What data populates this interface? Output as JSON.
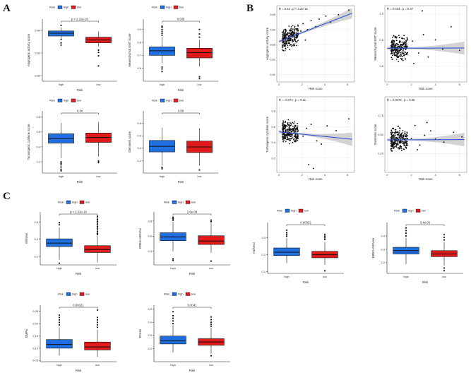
{
  "panels": [
    {
      "letter": "A"
    },
    {
      "letter": "B"
    },
    {
      "letter": "C"
    }
  ],
  "colors": {
    "high": "#1f6fe0",
    "low": "#e11b1b",
    "fit_line": "#3355dd",
    "ci_band": "#c8c8c8",
    "points": "#111111"
  },
  "chart_data": [
    {
      "type": "box",
      "panel": "A",
      "legend_title": "Risk",
      "legend": [
        "high",
        "low"
      ],
      "title": "",
      "xlabel": "Risk",
      "ylabel": "Angiogenic activity score",
      "stat": "p < 2.22e-16",
      "categories": [
        "high",
        "low"
      ],
      "ylim": [
        0.795,
        0.85
      ],
      "yticks": [
        0.8,
        0.82,
        0.84
      ],
      "ytick_labels": [
        "0.80",
        "0.82",
        "0.84"
      ],
      "boxes": [
        {
          "group": "high",
          "min": 0.832,
          "q1": 0.835,
          "median": 0.8375,
          "q3": 0.8395,
          "max": 0.8425,
          "outliers": [
            0.8445,
            0.832,
            0.829,
            0.827
          ]
        },
        {
          "group": "low",
          "min": 0.826,
          "q1": 0.829,
          "median": 0.8315,
          "q3": 0.834,
          "max": 0.839,
          "outliers": [
            0.8225,
            0.8205,
            0.8175,
            0.8085
          ]
        }
      ]
    },
    {
      "type": "box",
      "panel": "A",
      "legend_title": "Risk",
      "legend": [
        "high",
        "low"
      ],
      "title": "",
      "xlabel": "Risk",
      "ylabel": "Mesenchymal EMT score",
      "stat": "0.035",
      "categories": [
        "high",
        "low"
      ],
      "ylim": [
        0.5,
        0.98
      ],
      "yticks": [
        0.6,
        0.7,
        0.8,
        0.9
      ],
      "ytick_labels": [
        "0.6",
        "0.7",
        "0.8",
        "0.9"
      ],
      "boxes": [
        {
          "group": "high",
          "min": 0.64,
          "q1": 0.7,
          "median": 0.735,
          "q3": 0.765,
          "max": 0.84,
          "outliers": [
            0.855,
            0.87,
            0.885,
            0.9,
            0.915,
            0.925,
            0.61,
            0.595,
            0.575
          ]
        },
        {
          "group": "low",
          "min": 0.615,
          "q1": 0.68,
          "median": 0.72,
          "q3": 0.755,
          "max": 0.82,
          "outliers": [
            0.84,
            0.865,
            0.9,
            0.52,
            0.535
          ]
        }
      ]
    },
    {
      "type": "box",
      "panel": "A",
      "legend_title": "Risk",
      "legend": [
        "high",
        "low"
      ],
      "title": "",
      "xlabel": "Risk",
      "ylabel": "Tumorigenic cytokine score",
      "stat": "0.34",
      "categories": [
        "high",
        "low"
      ],
      "ylim": [
        0.05,
        0.88
      ],
      "yticks": [
        0.2,
        0.4,
        0.6,
        0.8
      ],
      "ytick_labels": [
        "0.2",
        "0.4",
        "0.6",
        "0.8"
      ],
      "boxes": [
        {
          "group": "high",
          "min": 0.25,
          "q1": 0.45,
          "median": 0.51,
          "q3": 0.575,
          "max": 0.72,
          "outliers": [
            0.2,
            0.18,
            0.16,
            0.13,
            0.1,
            0.08
          ]
        },
        {
          "group": "low",
          "min": 0.27,
          "q1": 0.46,
          "median": 0.525,
          "q3": 0.585,
          "max": 0.73,
          "outliers": [
            0.21,
            0.19
          ]
        }
      ]
    },
    {
      "type": "box",
      "panel": "A",
      "legend_title": "Risk",
      "legend": [
        "high",
        "low"
      ],
      "title": "",
      "xlabel": "Risk",
      "ylabel": "Stemness score",
      "stat": "0.89",
      "categories": [
        "high",
        "low"
      ],
      "ylim": [
        0.0,
        1.0
      ],
      "yticks": [
        0.2,
        0.4,
        0.6,
        0.8
      ],
      "ytick_labels": [
        "0.2",
        "0.4",
        "0.6",
        "0.8"
      ],
      "boxes": [
        {
          "group": "high",
          "min": 0.12,
          "q1": 0.34,
          "median": 0.43,
          "q3": 0.525,
          "max": 0.73,
          "outliers": [
            0.09,
            0.07
          ]
        },
        {
          "group": "low",
          "min": 0.12,
          "q1": 0.33,
          "median": 0.42,
          "q3": 0.515,
          "max": 0.72,
          "outliers": [
            0.05
          ]
        }
      ]
    },
    {
      "type": "scatter",
      "panel": "B",
      "xlabel": "Risk score",
      "ylabel": "Angiogenic activity score",
      "annotation": "R = 0.44 , p < 2.2e-16",
      "xlim": [
        -0.2,
        6.6
      ],
      "ylim": [
        0.805,
        0.856
      ],
      "xticks": [
        0,
        2,
        4,
        6
      ],
      "xtick_labels": [
        "0",
        "2",
        "4",
        "6"
      ],
      "yticks": [
        0.81,
        0.82,
        0.83,
        0.84,
        0.85
      ],
      "ytick_labels": [
        "0.81",
        "0.82",
        "0.83",
        "0.84",
        "0.85"
      ],
      "fit": {
        "x": [
          0,
          6.4
        ],
        "y": [
          0.832,
          0.851
        ]
      },
      "ci_halfwidth": [
        0.0006,
        0.0035
      ],
      "cluster": {
        "xmin": 0.3,
        "xmax": 1.7,
        "ymid": 0.835,
        "yspread": 0.006
      },
      "sparse": {
        "x": [
          2.1,
          2.5,
          2.8,
          3.2,
          3.5,
          4.1,
          4.5,
          5.2,
          6.1,
          1.9,
          2.3
        ],
        "y": [
          0.844,
          0.84,
          0.846,
          0.842,
          0.847,
          0.849,
          0.845,
          0.85,
          0.853,
          0.839,
          0.833
        ]
      }
    },
    {
      "type": "scatter",
      "panel": "B",
      "xlabel": "Risk score",
      "ylabel": "Mesenchymal EMT score",
      "annotation": "R = 0.033 , p = 0.47",
      "xlim": [
        -0.2,
        6.6
      ],
      "ylim": [
        0.48,
        1.06
      ],
      "xticks": [
        0,
        2,
        4,
        6
      ],
      "xtick_labels": [
        "0",
        "2",
        "4",
        "6"
      ],
      "yticks": [
        0.6,
        0.8,
        1.0
      ],
      "ytick_labels": [
        "0.6",
        "0.8",
        "1.0"
      ],
      "fit": {
        "x": [
          0,
          6.4
        ],
        "y": [
          0.736,
          0.738
        ]
      },
      "ci_halfwidth": [
        0.006,
        0.05
      ],
      "cluster": {
        "xmin": 0.3,
        "xmax": 1.7,
        "ymid": 0.74,
        "yspread": 0.075
      },
      "sparse": {
        "x": [
          2.1,
          2.6,
          3.0,
          3.4,
          4.0,
          4.6,
          5.3,
          6.0,
          2.2,
          2.9
        ],
        "y": [
          0.79,
          0.7,
          0.84,
          0.67,
          0.8,
          0.73,
          0.9,
          0.72,
          0.62,
          1.02
        ]
      }
    },
    {
      "type": "scatter",
      "panel": "B",
      "xlabel": "Risk score",
      "ylabel": "Tumorigenic cytokine score",
      "annotation": "R = -0.074 , p = 0.11",
      "xlim": [
        -0.2,
        6.6
      ],
      "ylim": [
        0.02,
        0.98
      ],
      "xticks": [
        0,
        2,
        4,
        6
      ],
      "xtick_labels": [
        "0",
        "2",
        "4",
        "6"
      ],
      "yticks": [
        0.2,
        0.4,
        0.6,
        0.8
      ],
      "ytick_labels": [
        "0.2",
        "0.4",
        "0.6",
        "0.8"
      ],
      "fit": {
        "x": [
          0,
          6.4
        ],
        "y": [
          0.535,
          0.44
        ]
      },
      "ci_halfwidth": [
        0.01,
        0.085
      ],
      "cluster": {
        "xmin": 0.3,
        "xmax": 1.7,
        "ymid": 0.52,
        "yspread": 0.12
      },
      "sparse": {
        "x": [
          2.1,
          2.4,
          2.8,
          3.3,
          3.7,
          4.2,
          5.0,
          6.1,
          2.6,
          3.0
        ],
        "y": [
          0.48,
          0.58,
          0.63,
          0.42,
          0.38,
          0.61,
          0.55,
          0.7,
          0.12,
          0.07
        ]
      }
    },
    {
      "type": "scatter",
      "panel": "B",
      "xlabel": "Risk score",
      "ylabel": "Stemness score",
      "annotation": "R = 0.0078 , p = 0.86",
      "xlim": [
        -0.2,
        6.6
      ],
      "ylim": [
        0.0,
        1.0
      ],
      "xticks": [
        0,
        2,
        4,
        6
      ],
      "xtick_labels": [
        "0",
        "2",
        "4",
        "6"
      ],
      "yticks": [
        0.25,
        0.5,
        0.75
      ],
      "ytick_labels": [
        "0.25",
        "0.50",
        "0.75"
      ],
      "fit": {
        "x": [
          0,
          6.4
        ],
        "y": [
          0.43,
          0.434
        ]
      },
      "ci_halfwidth": [
        0.01,
        0.09
      ],
      "cluster": {
        "xmin": 0.3,
        "xmax": 1.7,
        "ymid": 0.43,
        "yspread": 0.13
      },
      "sparse": {
        "x": [
          2.0,
          2.3,
          2.7,
          3.1,
          3.6,
          4.0,
          4.7,
          5.5,
          6.2,
          2.5,
          3.3
        ],
        "y": [
          0.45,
          0.62,
          0.36,
          0.49,
          0.55,
          0.44,
          0.4,
          0.53,
          0.47,
          0.3,
          0.66
        ]
      }
    },
    {
      "type": "box",
      "panel": "C",
      "legend_title": "Risk",
      "legend": [
        "high",
        "low"
      ],
      "title": "",
      "xlabel": "Risk",
      "ylabel": "mRNAsi",
      "stat": "p < 2.22e-16",
      "categories": [
        "high",
        "low"
      ],
      "ylim": [
        0.1,
        0.72
      ],
      "yticks": [
        0.2,
        0.4,
        0.6
      ],
      "ytick_labels": [
        "0.2",
        "0.4",
        "0.6"
      ],
      "boxes": [
        {
          "group": "high",
          "min": 0.16,
          "q1": 0.315,
          "median": 0.355,
          "q3": 0.405,
          "max": 0.54,
          "outliers": [
            0.57,
            0.595,
            0.12
          ]
        },
        {
          "group": "low",
          "min": 0.13,
          "q1": 0.245,
          "median": 0.28,
          "q3": 0.325,
          "max": 0.44,
          "outliers": [
            0.455,
            0.47,
            0.49,
            0.51,
            0.53,
            0.55,
            0.57,
            0.59,
            0.61,
            0.63,
            0.65,
            0.67
          ]
        }
      ]
    },
    {
      "type": "box",
      "panel": "C",
      "legend_title": "Risk",
      "legend": [
        "high",
        "low"
      ],
      "title": "",
      "xlabel": "Risk",
      "ylabel": "EREG-mRNAsi",
      "stat": "2.6e-08",
      "categories": [
        "high",
        "low"
      ],
      "ylim": [
        0.22,
        0.92
      ],
      "yticks": [
        0.4,
        0.6,
        0.8
      ],
      "ytick_labels": [
        "0.4",
        "0.6",
        "0.8"
      ],
      "boxes": [
        {
          "group": "high",
          "min": 0.4,
          "q1": 0.54,
          "median": 0.59,
          "q3": 0.645,
          "max": 0.79,
          "outliers": [
            0.81,
            0.83,
            0.85,
            0.3,
            0.28
          ]
        },
        {
          "group": "low",
          "min": 0.38,
          "q1": 0.49,
          "median": 0.535,
          "q3": 0.605,
          "max": 0.77,
          "outliers": [
            0.79,
            0.81,
            0.27
          ]
        }
      ]
    },
    {
      "type": "box",
      "panel": "C",
      "legend_title": "Risk",
      "legend": [
        "high",
        "low"
      ],
      "title": "",
      "xlabel": "Risk",
      "ylabel": "mDNAsi",
      "stat": "0.00032",
      "categories": [
        "high",
        "low"
      ],
      "ylim": [
        0.09,
        0.39
      ],
      "yticks": [
        0.1,
        0.2,
        0.3
      ],
      "ytick_labels": [
        "0.1",
        "0.2",
        "0.3"
      ],
      "boxes": [
        {
          "group": "high",
          "min": 0.15,
          "q1": 0.195,
          "median": 0.215,
          "q3": 0.24,
          "max": 0.3,
          "outliers": [
            0.31,
            0.32,
            0.33,
            0.345
          ]
        },
        {
          "group": "low",
          "min": 0.14,
          "q1": 0.182,
          "median": 0.2,
          "q3": 0.22,
          "max": 0.275,
          "outliers": [
            0.29,
            0.3,
            0.31,
            0.32,
            0.105
          ]
        }
      ]
    },
    {
      "type": "box",
      "panel": "C",
      "legend_title": "Risk",
      "legend": [
        "high",
        "low"
      ],
      "title": "",
      "xlabel": "Risk",
      "ylabel": "EREG-mDNAsi",
      "stat": "3.4e-05",
      "categories": [
        "high",
        "low"
      ],
      "ylim": [
        0.12,
        0.5
      ],
      "yticks": [
        0.2,
        0.3,
        0.4
      ],
      "ytick_labels": [
        "0.2",
        "0.3",
        "0.4"
      ],
      "boxes": [
        {
          "group": "high",
          "min": 0.19,
          "q1": 0.265,
          "median": 0.29,
          "q3": 0.315,
          "max": 0.385,
          "outliers": [
            0.4,
            0.42,
            0.44,
            0.46
          ]
        },
        {
          "group": "low",
          "min": 0.18,
          "q1": 0.245,
          "median": 0.265,
          "q3": 0.29,
          "max": 0.355,
          "outliers": [
            0.37,
            0.39,
            0.41,
            0.16,
            0.14
          ]
        }
      ]
    },
    {
      "type": "box",
      "panel": "C",
      "legend_title": "Risk",
      "legend": [
        "high",
        "low"
      ],
      "title": "",
      "xlabel": "Risk",
      "ylabel": "DMPsi",
      "stat": "0.00021",
      "categories": [
        "high",
        "low"
      ],
      "ylim": [
        0.045,
        0.275
      ],
      "yticks": [
        0.05,
        0.1,
        0.15,
        0.2,
        0.25
      ],
      "ytick_labels": [
        "0.05",
        "0.10",
        "0.15",
        "0.20",
        "0.25"
      ],
      "boxes": [
        {
          "group": "high",
          "min": 0.07,
          "q1": 0.1,
          "median": 0.115,
          "q3": 0.135,
          "max": 0.185,
          "outliers": [
            0.195,
            0.205,
            0.215,
            0.225,
            0.235
          ]
        },
        {
          "group": "low",
          "min": 0.065,
          "q1": 0.093,
          "median": 0.105,
          "q3": 0.125,
          "max": 0.175,
          "outliers": [
            0.185,
            0.195,
            0.205,
            0.215,
            0.225,
            0.255
          ]
        }
      ]
    },
    {
      "type": "box",
      "panel": "C",
      "legend_title": "Risk",
      "legend": [
        "high",
        "low"
      ],
      "title": "",
      "xlabel": "Risk",
      "ylabel": "ENHsi",
      "stat": "0.0041",
      "categories": [
        "high",
        "low"
      ],
      "ylim": [
        0.1,
        0.53
      ],
      "yticks": [
        0.2,
        0.3,
        0.4,
        0.5
      ],
      "ytick_labels": [
        "0.2",
        "0.3",
        "0.4",
        "0.5"
      ],
      "boxes": [
        {
          "group": "high",
          "min": 0.17,
          "q1": 0.235,
          "median": 0.26,
          "q3": 0.295,
          "max": 0.38,
          "outliers": [
            0.39,
            0.41,
            0.43,
            0.45,
            0.48
          ]
        },
        {
          "group": "low",
          "min": 0.16,
          "q1": 0.225,
          "median": 0.25,
          "q3": 0.275,
          "max": 0.36,
          "outliers": [
            0.37,
            0.385,
            0.4,
            0.42,
            0.44,
            0.145
          ]
        }
      ]
    }
  ]
}
